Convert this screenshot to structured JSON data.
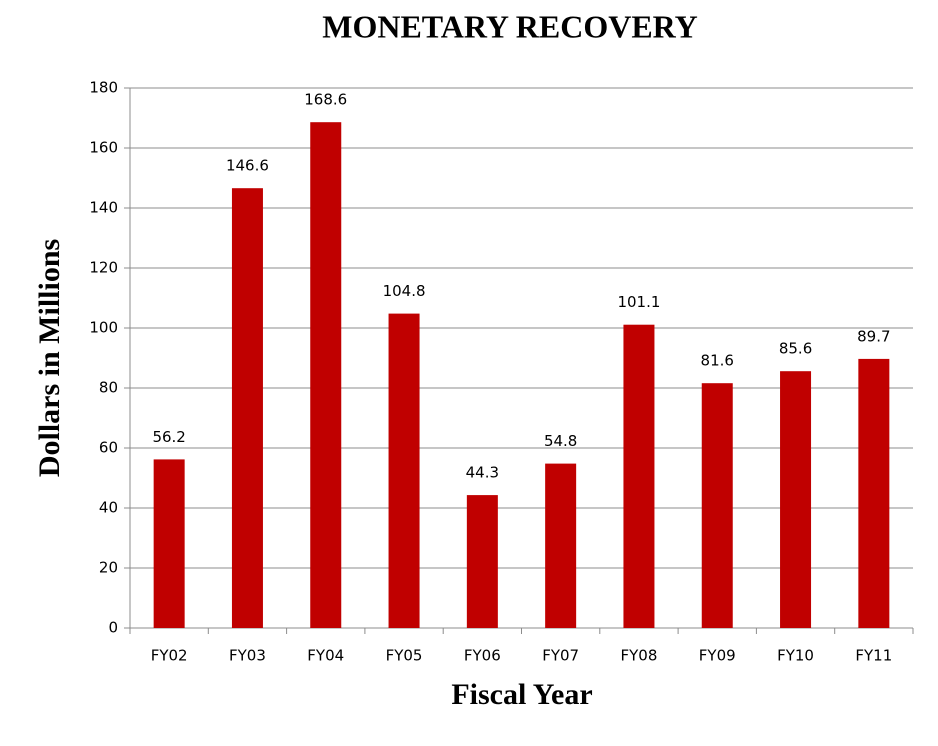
{
  "chart_data": {
    "type": "bar",
    "title": "MONETARY RECOVERY",
    "x_label": "Fiscal Year",
    "y_label": "Dollars in Millions",
    "categories": [
      "FY02",
      "FY03",
      "FY04",
      "FY05",
      "FY06",
      "FY07",
      "FY08",
      "FY09",
      "FY10",
      "FY11"
    ],
    "values": [
      56.2,
      146.6,
      168.6,
      104.8,
      44.3,
      54.8,
      101.1,
      81.6,
      85.6,
      89.7
    ],
    "color": "#c00000",
    "ylim": [
      0,
      180
    ],
    "yticks": [
      0,
      20,
      40,
      60,
      80,
      100,
      120,
      140,
      160,
      180
    ],
    "grid": true
  }
}
